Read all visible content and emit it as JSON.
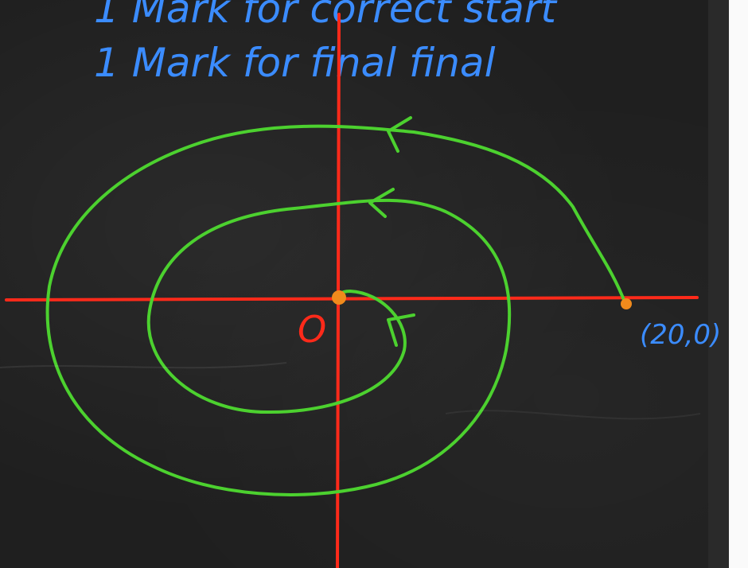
{
  "notes": {
    "line1": "1 Mark for correct start",
    "line2": "1 Mark for final final"
  },
  "diagram": {
    "origin_label": "O",
    "start_point_label": "(20,0)"
  },
  "colors": {
    "background": "#1f1f1f",
    "axes": "#ff2a1a",
    "spiral": "#4cd12f",
    "note_text": "#3b8cff",
    "origin_label": "#ff2a1a",
    "point_marker": "#f08a1c"
  }
}
